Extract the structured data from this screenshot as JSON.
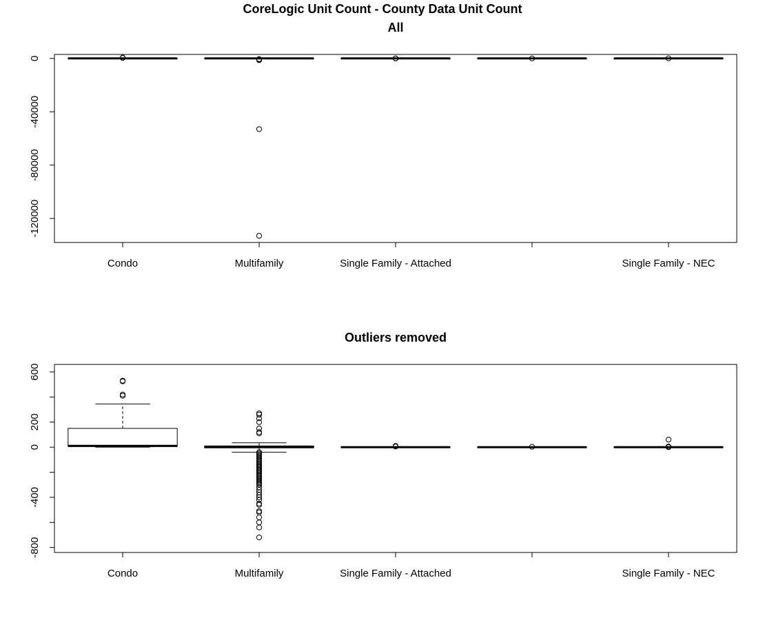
{
  "page": {
    "title": "CoreLogic Unit Count - County Data Unit Count"
  },
  "chart_data": [
    {
      "type": "boxplot",
      "title": "All",
      "xlabel": "",
      "ylabel": "",
      "ylim": [
        -138000,
        3000
      ],
      "yticks": [
        0,
        -40000,
        -80000,
        -120000
      ],
      "ytick_labels": [
        "0",
        "-40000",
        "-80000",
        "-120000"
      ],
      "grid": false,
      "categories": [
        "Condo",
        "Multifamily",
        "Single Family - Attached",
        "",
        "Single Family - NEC"
      ],
      "boxes": [
        {
          "min": 0,
          "q1": 5,
          "median": 10,
          "q3": 140,
          "max": 340,
          "outliers": [
            410,
            420,
            530,
            540
          ]
        },
        {
          "min": -40,
          "q1": -5,
          "median": 0,
          "q3": 10,
          "max": 30,
          "outliers": [
            -500,
            -900,
            -1300,
            -53000,
            -133000
          ]
        },
        {
          "min": 0,
          "q1": 0,
          "median": 0,
          "q3": 0,
          "max": 0,
          "outliers": [
            5,
            10
          ]
        },
        {
          "min": 0,
          "q1": 0,
          "median": 0,
          "q3": 0,
          "max": 0,
          "outliers": [
            3
          ]
        },
        {
          "min": 0,
          "q1": 0,
          "median": 0,
          "q3": 0,
          "max": 0,
          "outliers": [
            60
          ]
        }
      ]
    },
    {
      "type": "boxplot",
      "title": "Outliers removed",
      "xlabel": "",
      "ylabel": "",
      "ylim": [
        -840,
        660
      ],
      "yticks": [
        600,
        200,
        0,
        -400,
        -800
      ],
      "ytick_labels": [
        "600",
        "200",
        "0",
        "-400",
        "-800"
      ],
      "minor_yticks": [
        400,
        -200,
        -600
      ],
      "grid": false,
      "categories": [
        "Condo",
        "Multifamily",
        "Single Family - Attached",
        "",
        "Single Family - NEC"
      ],
      "boxes": [
        {
          "min": 0,
          "q1": 5,
          "median": 10,
          "q3": 150,
          "max": 345,
          "outliers": [
            410,
            420,
            525,
            530
          ]
        },
        {
          "min": -40,
          "q1": -5,
          "median": 0,
          "q3": 10,
          "max": 35,
          "outliers": [
            270,
            260,
            230,
            200,
            150,
            120,
            110,
            -40,
            -50,
            -60,
            -70,
            -80,
            -90,
            -100,
            -110,
            -120,
            -130,
            -140,
            -150,
            -160,
            -170,
            -180,
            -190,
            -200,
            -210,
            -220,
            -230,
            -240,
            -250,
            -260,
            -270,
            -280,
            -290,
            -300,
            -320,
            -340,
            -360,
            -380,
            -400,
            -420,
            -450,
            -460,
            -510,
            -520,
            -560,
            -600,
            -640,
            -720
          ]
        },
        {
          "min": 0,
          "q1": 0,
          "median": 0,
          "q3": 0,
          "max": 0,
          "outliers": [
            5,
            10
          ]
        },
        {
          "min": 0,
          "q1": 0,
          "median": 0,
          "q3": 0,
          "max": 0,
          "outliers": [
            3
          ]
        },
        {
          "min": 0,
          "q1": 0,
          "median": 0,
          "q3": 0,
          "max": 0,
          "outliers": [
            0,
            5,
            60
          ]
        }
      ]
    }
  ]
}
